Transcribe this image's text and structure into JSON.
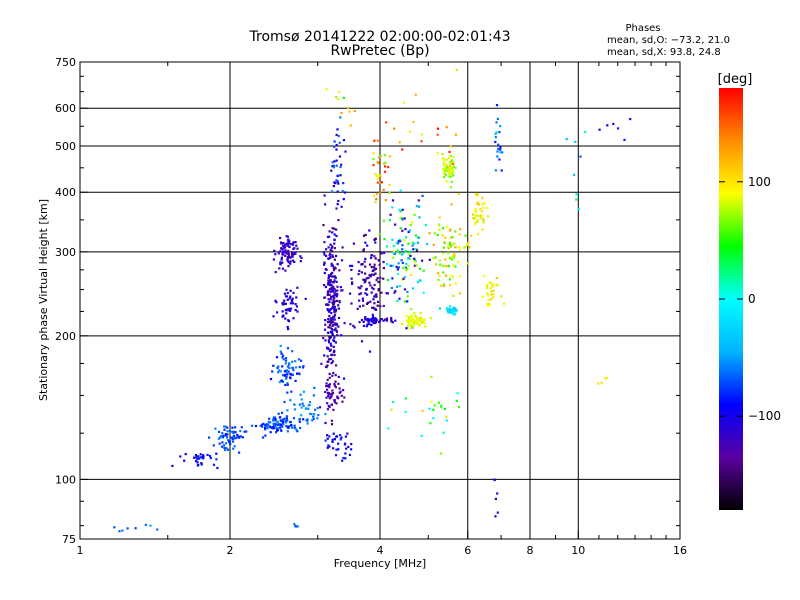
{
  "chart_data": {
    "type": "scatter",
    "title_lines": [
      "Tromsø 20141222 02:00:00-02:01:43",
      "RwPretec (Bp)"
    ],
    "xlabel": "Frequency [MHz]",
    "ylabel": "Stationary phase Virtual Height [km]",
    "x_scale": "log",
    "y_scale": "log",
    "xlim": [
      1,
      16
    ],
    "ylim": [
      75,
      750
    ],
    "x_tick_values": [
      1,
      2,
      4,
      6,
      8,
      10,
      16
    ],
    "x_tick_labels": [
      "1",
      "2",
      "4",
      "6",
      "8",
      "10",
      "16"
    ],
    "x_grid_values": [
      2,
      4,
      6,
      8,
      10
    ],
    "y_tick_values": [
      75,
      100,
      200,
      300,
      400,
      500,
      600,
      750
    ],
    "y_tick_labels": [
      "75",
      "100",
      "200",
      "300",
      "400",
      "500",
      "600",
      "750"
    ],
    "y_grid_values": [
      100,
      200,
      300,
      400,
      500,
      600
    ],
    "grid": true,
    "stats": {
      "heading": "Phases",
      "line_o": "mean, sd,O: −73.2, 21.0",
      "line_x": "mean, sd,X:  93.8, 24.8"
    },
    "colorbar": {
      "unit": "[deg]",
      "range": [
        -180,
        180
      ],
      "ticks": [
        100,
        0,
        -100
      ],
      "tick_labels": [
        "100",
        "0",
        "−100"
      ],
      "colors": [
        "#000000",
        "#5a00a0",
        "#0000ff",
        "#00b4ff",
        "#00ffff",
        "#00ff00",
        "#ffff00",
        "#ff8c00",
        "#ff0000"
      ]
    },
    "clusters": [
      {
        "x": 2.6,
        "y": 300,
        "sx": 0.025,
        "sy": 0.04,
        "n": 90,
        "phase": -115,
        "dphase": 15
      },
      {
        "x": 2.6,
        "y": 230,
        "sx": 0.03,
        "sy": 0.04,
        "n": 50,
        "phase": -105,
        "dphase": 15
      },
      {
        "x": 2.6,
        "y": 170,
        "sx": 0.03,
        "sy": 0.05,
        "n": 70,
        "phase": -70,
        "dphase": 20
      },
      {
        "x": 2.5,
        "y": 130,
        "sx": 0.06,
        "sy": 0.02,
        "n": 90,
        "phase": -75,
        "dphase": 15
      },
      {
        "x": 2.8,
        "y": 140,
        "sx": 0.04,
        "sy": 0.05,
        "n": 40,
        "phase": -60,
        "dphase": 15
      },
      {
        "x": 2.0,
        "y": 123,
        "sx": 0.04,
        "sy": 0.03,
        "n": 60,
        "phase": -70,
        "dphase": 15
      },
      {
        "x": 1.75,
        "y": 110,
        "sx": 0.04,
        "sy": 0.02,
        "n": 30,
        "phase": -90,
        "dphase": 15
      },
      {
        "x": 3.2,
        "y": 240,
        "sx": 0.02,
        "sy": 0.18,
        "n": 260,
        "phase": -120,
        "dphase": 30
      },
      {
        "x": 3.3,
        "y": 450,
        "sx": 0.02,
        "sy": 0.1,
        "n": 40,
        "phase": -90,
        "dphase": 40
      },
      {
        "x": 3.2,
        "y": 150,
        "sx": 0.02,
        "sy": 0.05,
        "n": 50,
        "phase": -130,
        "dphase": 10
      },
      {
        "x": 3.3,
        "y": 118,
        "sx": 0.03,
        "sy": 0.03,
        "n": 35,
        "phase": -95,
        "dphase": 20
      },
      {
        "x": 3.8,
        "y": 260,
        "sx": 0.04,
        "sy": 0.12,
        "n": 120,
        "phase": -125,
        "dphase": 30
      },
      {
        "x": 3.9,
        "y": 215,
        "sx": 0.04,
        "sy": 0.01,
        "n": 45,
        "phase": -110,
        "dphase": 15
      },
      {
        "x": 4.0,
        "y": 430,
        "sx": 0.02,
        "sy": 0.08,
        "n": 35,
        "phase": 120,
        "dphase": 60
      },
      {
        "x": 4.5,
        "y": 300,
        "sx": 0.05,
        "sy": 0.12,
        "n": 130,
        "phase": -20,
        "dphase": 120
      },
      {
        "x": 4.7,
        "y": 215,
        "sx": 0.03,
        "sy": 0.015,
        "n": 70,
        "phase": 85,
        "dphase": 12
      },
      {
        "x": 5.5,
        "y": 450,
        "sx": 0.015,
        "sy": 0.03,
        "n": 60,
        "phase": 80,
        "dphase": 20
      },
      {
        "x": 5.5,
        "y": 300,
        "sx": 0.04,
        "sy": 0.1,
        "n": 80,
        "phase": 90,
        "dphase": 40
      },
      {
        "x": 5.6,
        "y": 225,
        "sx": 0.02,
        "sy": 0.01,
        "n": 30,
        "phase": -20,
        "dphase": 15
      },
      {
        "x": 6.3,
        "y": 360,
        "sx": 0.02,
        "sy": 0.05,
        "n": 40,
        "phase": 95,
        "dphase": 20
      },
      {
        "x": 6.7,
        "y": 250,
        "sx": 0.02,
        "sy": 0.05,
        "n": 30,
        "phase": 95,
        "dphase": 20
      },
      {
        "x": 6.9,
        "y": 500,
        "sx": 0.01,
        "sy": 0.1,
        "n": 20,
        "phase": -60,
        "dphase": 25
      },
      {
        "x": 3.4,
        "y": 600,
        "sx": 0.05,
        "sy": 0.05,
        "n": 10,
        "phase": 100,
        "dphase": 60
      },
      {
        "x": 5.0,
        "y": 550,
        "sx": 0.1,
        "sy": 0.1,
        "n": 20,
        "phase": 120,
        "dphase": 60
      },
      {
        "x": 5.0,
        "y": 140,
        "sx": 0.08,
        "sy": 0.08,
        "n": 25,
        "phase": 50,
        "dphase": 60
      },
      {
        "x": 1.3,
        "y": 79,
        "sx": 0.06,
        "sy": 0.01,
        "n": 8,
        "phase": -60,
        "dphase": 15
      },
      {
        "x": 2.7,
        "y": 80,
        "sx": 0.01,
        "sy": 0.01,
        "n": 4,
        "phase": -60,
        "dphase": 10
      },
      {
        "x": 9.9,
        "y": 450,
        "sx": 0.02,
        "sy": 0.15,
        "n": 8,
        "phase": -20,
        "dphase": 60
      },
      {
        "x": 11.5,
        "y": 560,
        "sx": 0.05,
        "sy": 0.03,
        "n": 6,
        "phase": -100,
        "dphase": 20
      },
      {
        "x": 11.0,
        "y": 160,
        "sx": 0.03,
        "sy": 0.01,
        "n": 4,
        "phase": 100,
        "dphase": 5
      },
      {
        "x": 6.8,
        "y": 90,
        "sx": 0.01,
        "sy": 0.05,
        "n": 6,
        "phase": -110,
        "dphase": 15
      }
    ]
  }
}
